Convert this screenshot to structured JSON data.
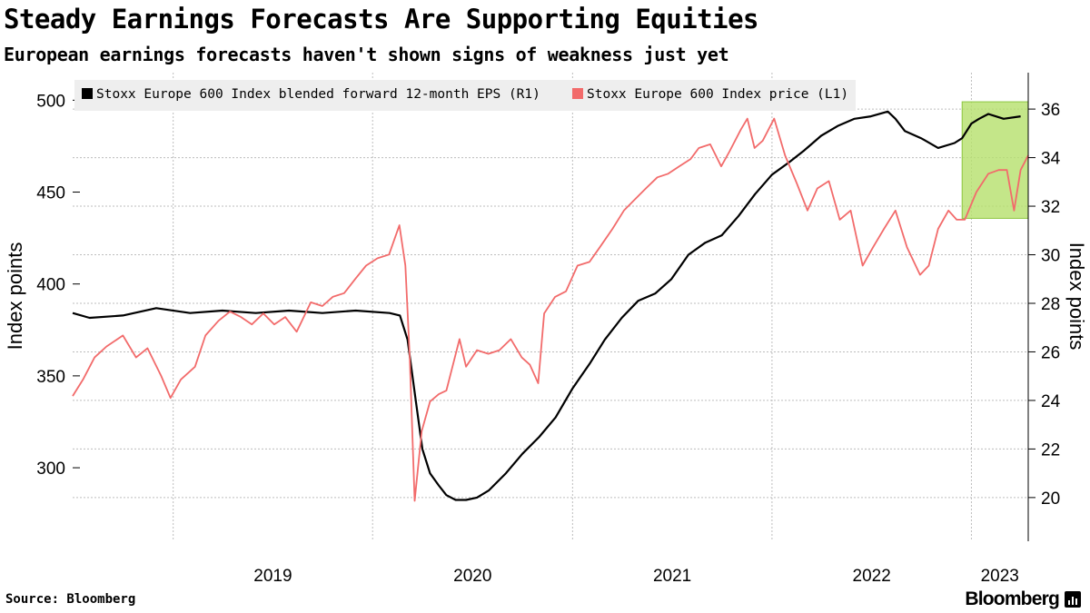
{
  "header": {
    "title": "Steady Earnings Forecasts Are Supporting Equities",
    "subtitle": "European earnings forecasts haven't shown signs of weakness just yet"
  },
  "footer": {
    "source": "Source: Bloomberg",
    "brand": "Bloomberg"
  },
  "colors": {
    "eps": "#000000",
    "price": "#f26b6b",
    "highlight_fill": "#b5e06b",
    "highlight_stroke": "#8cc63f",
    "grid": "#bdbdbd",
    "legend_bg": "#eeeeee"
  },
  "chart_data": {
    "type": "line",
    "title": "Steady Earnings Forecasts Are Supporting Equities",
    "subtitle": "European earnings forecasts haven't shown signs of weakness just yet",
    "x_range": [
      "2018-07-01",
      "2023-04-15"
    ],
    "x_tick_labels": [
      {
        "label": "2019",
        "date": "2019-01-01"
      },
      {
        "label": "2020",
        "date": "2020-01-01"
      },
      {
        "label": "2021",
        "date": "2021-01-01"
      },
      {
        "label": "2022",
        "date": "2022-01-01"
      },
      {
        "label": "2023",
        "date": "2023-01-01"
      }
    ],
    "y_left": {
      "label": "Index points",
      "range": [
        260,
        515
      ],
      "ticks": [
        300,
        350,
        400,
        450,
        500
      ]
    },
    "y_right": {
      "label": "Index points",
      "range": [
        18.2,
        37.5
      ],
      "ticks": [
        20,
        22,
        24,
        26,
        28,
        30,
        32,
        34,
        36
      ]
    },
    "grid": true,
    "legend_position": "top-left",
    "highlight": {
      "x_start": "2022-12-15",
      "x_end": "2023-04-15",
      "y_right_start": 31.5,
      "y_right_end": 36.3
    },
    "series": [
      {
        "name": "Stoxx Europe 600 Index blended forward 12-month EPS (R1)",
        "axis": "right",
        "x": [
          "2018-07-01",
          "2018-08-01",
          "2018-10-01",
          "2018-12-01",
          "2019-02-01",
          "2019-04-01",
          "2019-06-01",
          "2019-08-01",
          "2019-10-01",
          "2019-12-01",
          "2020-02-01",
          "2020-02-20",
          "2020-03-05",
          "2020-03-20",
          "2020-04-01",
          "2020-04-15",
          "2020-05-01",
          "2020-05-15",
          "2020-06-01",
          "2020-06-20",
          "2020-07-10",
          "2020-08-01",
          "2020-09-01",
          "2020-10-01",
          "2020-11-01",
          "2020-12-01",
          "2021-01-01",
          "2021-02-01",
          "2021-03-01",
          "2021-04-01",
          "2021-05-01",
          "2021-06-01",
          "2021-07-01",
          "2021-08-01",
          "2021-09-01",
          "2021-10-01",
          "2021-11-01",
          "2021-12-01",
          "2022-01-01",
          "2022-02-01",
          "2022-03-01",
          "2022-04-01",
          "2022-05-01",
          "2022-06-01",
          "2022-07-01",
          "2022-08-01",
          "2022-08-15",
          "2022-09-01",
          "2022-10-01",
          "2022-11-01",
          "2022-12-01",
          "2022-12-15",
          "2023-01-01",
          "2023-01-15",
          "2023-02-01",
          "2023-03-01",
          "2023-04-01"
        ],
        "y": [
          27.6,
          27.4,
          27.5,
          27.8,
          27.6,
          27.7,
          27.6,
          27.7,
          27.6,
          27.7,
          27.6,
          27.5,
          26.5,
          24.0,
          22.0,
          21.0,
          20.5,
          20.1,
          19.9,
          19.9,
          20.0,
          20.3,
          21.0,
          21.8,
          22.5,
          23.3,
          24.5,
          25.5,
          26.5,
          27.4,
          28.1,
          28.4,
          29.0,
          30.0,
          30.5,
          30.8,
          31.6,
          32.5,
          33.3,
          33.8,
          34.3,
          34.9,
          35.3,
          35.6,
          35.7,
          35.9,
          35.6,
          35.1,
          34.8,
          34.4,
          34.6,
          34.8,
          35.4,
          35.6,
          35.8,
          35.6,
          35.7
        ]
      },
      {
        "name": "Stoxx Europe 600 Index price (L1)",
        "axis": "left",
        "x": [
          "2018-07-01",
          "2018-07-20",
          "2018-08-10",
          "2018-09-01",
          "2018-10-01",
          "2018-10-25",
          "2018-11-15",
          "2018-12-10",
          "2018-12-27",
          "2019-01-15",
          "2019-02-10",
          "2019-03-01",
          "2019-03-25",
          "2019-04-15",
          "2019-05-05",
          "2019-05-25",
          "2019-06-15",
          "2019-07-05",
          "2019-07-25",
          "2019-08-15",
          "2019-09-10",
          "2019-10-01",
          "2019-10-20",
          "2019-11-10",
          "2019-12-01",
          "2019-12-20",
          "2020-01-10",
          "2020-01-31",
          "2020-02-19",
          "2020-03-01",
          "2020-03-09",
          "2020-03-18",
          "2020-03-31",
          "2020-04-15",
          "2020-05-01",
          "2020-05-15",
          "2020-06-08",
          "2020-06-20",
          "2020-07-10",
          "2020-07-31",
          "2020-08-20",
          "2020-09-10",
          "2020-09-30",
          "2020-10-15",
          "2020-10-30",
          "2020-11-10",
          "2020-11-30",
          "2020-12-20",
          "2021-01-10",
          "2021-02-01",
          "2021-02-20",
          "2021-03-15",
          "2021-04-05",
          "2021-04-25",
          "2021-05-15",
          "2021-06-05",
          "2021-06-25",
          "2021-07-15",
          "2021-08-05",
          "2021-08-20",
          "2021-09-10",
          "2021-09-30",
          "2021-10-15",
          "2021-11-05",
          "2021-11-17",
          "2021-11-30",
          "2021-12-15",
          "2022-01-05",
          "2022-01-25",
          "2022-02-15",
          "2022-03-07",
          "2022-03-25",
          "2022-04-15",
          "2022-05-05",
          "2022-05-25",
          "2022-06-16",
          "2022-07-05",
          "2022-07-25",
          "2022-08-15",
          "2022-09-05",
          "2022-09-29",
          "2022-10-15",
          "2022-11-01",
          "2022-11-20",
          "2022-12-05",
          "2022-12-20",
          "2023-01-10",
          "2023-02-01",
          "2023-02-20",
          "2023-03-07",
          "2023-03-20",
          "2023-04-01",
          "2023-04-15"
        ],
        "y": [
          339,
          348,
          360,
          366,
          372,
          360,
          365,
          350,
          338,
          348,
          355,
          372,
          380,
          385,
          382,
          378,
          384,
          378,
          382,
          374,
          390,
          388,
          393,
          395,
          403,
          410,
          414,
          416,
          432,
          410,
          360,
          282,
          320,
          336,
          340,
          342,
          370,
          355,
          364,
          362,
          364,
          370,
          360,
          356,
          346,
          384,
          393,
          396,
          410,
          412,
          420,
          430,
          440,
          446,
          452,
          458,
          460,
          464,
          468,
          474,
          476,
          464,
          472,
          484,
          490,
          474,
          478,
          490,
          470,
          455,
          440,
          452,
          456,
          435,
          440,
          410,
          420,
          430,
          440,
          420,
          405,
          410,
          430,
          440,
          435,
          435,
          450,
          460,
          462,
          462,
          440,
          462,
          470
        ]
      }
    ]
  }
}
